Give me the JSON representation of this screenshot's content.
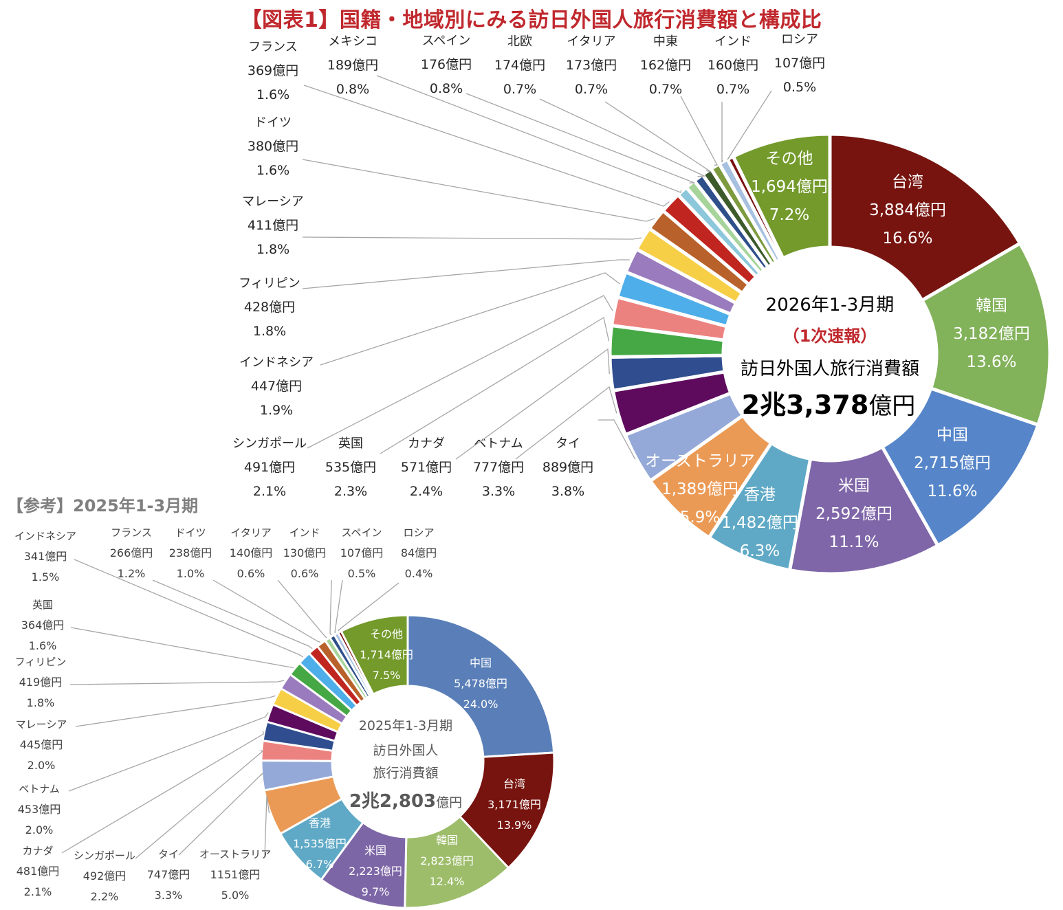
{
  "title": "【図表1】国籍・地域別にみる訪日外国人旅行消費額と構成比",
  "reference_title": "【参考】2025年1-3月期",
  "chart_data": [
    {
      "type": "donut",
      "period": "2026年1-3月期",
      "center": {
        "line1": "2026年1-3月期",
        "line2": "（1次速報）",
        "line3": "訪日外国人旅行消費額",
        "total_main": "2兆3,378",
        "total_unit": "億円"
      },
      "series": [
        {
          "name": "台湾",
          "value": 3884,
          "value_label": "3,884億円",
          "pct_label": "16.6%",
          "color": "#77140f"
        },
        {
          "name": "韓国",
          "value": 3182,
          "value_label": "3,182億円",
          "pct_label": "13.6%",
          "color": "#82b25a"
        },
        {
          "name": "中国",
          "value": 2715,
          "value_label": "2,715億円",
          "pct_label": "11.6%",
          "color": "#5686c9"
        },
        {
          "name": "米国",
          "value": 2592,
          "value_label": "2,592億円",
          "pct_label": "11.1%",
          "color": "#7f66a8"
        },
        {
          "name": "香港",
          "value": 1482,
          "value_label": "1,482億円",
          "pct_label": "6.3%",
          "color": "#5fa9c6"
        },
        {
          "name": "オーストラリア",
          "value": 1389,
          "value_label": "1,389億円",
          "pct_label": "5.9%",
          "color": "#eb9a55"
        },
        {
          "name": "タイ",
          "value": 889,
          "value_label": "889億円",
          "pct_label": "3.8%",
          "color": "#95a9d8"
        },
        {
          "name": "ベトナム",
          "value": 777,
          "value_label": "777億円",
          "pct_label": "3.3%",
          "color": "#5e0b5e"
        },
        {
          "name": "カナダ",
          "value": 571,
          "value_label": "571億円",
          "pct_label": "2.4%",
          "color": "#2f4d8f"
        },
        {
          "name": "英国",
          "value": 535,
          "value_label": "535億円",
          "pct_label": "2.3%",
          "color": "#46a845"
        },
        {
          "name": "シンガポール",
          "value": 491,
          "value_label": "491億円",
          "pct_label": "2.1%",
          "color": "#ec8280"
        },
        {
          "name": "インドネシア",
          "value": 447,
          "value_label": "447億円",
          "pct_label": "1.9%",
          "color": "#4eaee9"
        },
        {
          "name": "フィリピン",
          "value": 428,
          "value_label": "428億円",
          "pct_label": "1.8%",
          "color": "#9a7bbd"
        },
        {
          "name": "マレーシア",
          "value": 411,
          "value_label": "411億円",
          "pct_label": "1.8%",
          "color": "#f7cf47"
        },
        {
          "name": "ドイツ",
          "value": 380,
          "value_label": "380億円",
          "pct_label": "1.6%",
          "color": "#b9612a"
        },
        {
          "name": "フランス",
          "value": 369,
          "value_label": "369億円",
          "pct_label": "1.6%",
          "color": "#c0251f"
        },
        {
          "name": "メキシコ",
          "value": 189,
          "value_label": "189億円",
          "pct_label": "0.8%",
          "color": "#8cc7dc"
        },
        {
          "name": "スペイン",
          "value": 176,
          "value_label": "176億円",
          "pct_label": "0.8%",
          "color": "#a7d49a"
        },
        {
          "name": "北欧",
          "value": 174,
          "value_label": "174億円",
          "pct_label": "0.7%",
          "color": "#2f4f8a"
        },
        {
          "name": "イタリア",
          "value": 173,
          "value_label": "173億円",
          "pct_label": "0.7%",
          "color": "#3c5a2a"
        },
        {
          "name": "中東",
          "value": 162,
          "value_label": "162億円",
          "pct_label": "0.7%",
          "color": "#7d9b3e"
        },
        {
          "name": "インド",
          "value": 160,
          "value_label": "160億円",
          "pct_label": "0.7%",
          "color": "#a7c0e0"
        },
        {
          "name": "ロシア",
          "value": 107,
          "value_label": "107億円",
          "pct_label": "0.5%",
          "color": "#7a1010"
        },
        {
          "name": "その他",
          "value": 1694,
          "value_label": "1,694億円",
          "pct_label": "7.2%",
          "color": "#739a2b"
        }
      ]
    },
    {
      "type": "donut",
      "period": "2025年1-3月期",
      "center": {
        "line1": "2025年1-3月期",
        "line2": "訪日外国人",
        "line3": "旅行消費額",
        "total_main": "2兆2,803",
        "total_unit": "億円"
      },
      "series": [
        {
          "name": "中国",
          "value": 5478,
          "value_label": "5,478億円",
          "pct_label": "24.0%",
          "color": "#5a7fb8"
        },
        {
          "name": "台湾",
          "value": 3171,
          "value_label": "3,171億円",
          "pct_label": "13.9%",
          "color": "#77140f"
        },
        {
          "name": "韓国",
          "value": 2823,
          "value_label": "2,823億円",
          "pct_label": "12.4%",
          "color": "#9dbd6a"
        },
        {
          "name": "米国",
          "value": 2223,
          "value_label": "2,223億円",
          "pct_label": "9.7%",
          "color": "#7d66a6"
        },
        {
          "name": "香港",
          "value": 1535,
          "value_label": "1,535億円",
          "pct_label": "6.7%",
          "color": "#5fa9c6"
        },
        {
          "name": "オーストラリア",
          "value": 1151,
          "value_label": "1151億円",
          "pct_label": "5.0%",
          "color": "#eb9a55"
        },
        {
          "name": "タイ",
          "value": 747,
          "value_label": "747億円",
          "pct_label": "3.3%",
          "color": "#95a9d8"
        },
        {
          "name": "シンガポール",
          "value": 492,
          "value_label": "492億円",
          "pct_label": "2.2%",
          "color": "#ec8280"
        },
        {
          "name": "カナダ",
          "value": 481,
          "value_label": "481億円",
          "pct_label": "2.1%",
          "color": "#2f4d8f"
        },
        {
          "name": "ベトナム",
          "value": 453,
          "value_label": "453億円",
          "pct_label": "2.0%",
          "color": "#5e0b5e"
        },
        {
          "name": "マレーシア",
          "value": 445,
          "value_label": "445億円",
          "pct_label": "2.0%",
          "color": "#f7cf47"
        },
        {
          "name": "フィリピン",
          "value": 419,
          "value_label": "419億円",
          "pct_label": "1.8%",
          "color": "#9a7bbd"
        },
        {
          "name": "英国",
          "value": 364,
          "value_label": "364億円",
          "pct_label": "1.6%",
          "color": "#46a845"
        },
        {
          "name": "インドネシア",
          "value": 341,
          "value_label": "341億円",
          "pct_label": "1.5%",
          "color": "#4eaee9"
        },
        {
          "name": "フランス",
          "value": 266,
          "value_label": "266億円",
          "pct_label": "1.2%",
          "color": "#c0251f"
        },
        {
          "name": "ドイツ",
          "value": 238,
          "value_label": "238億円",
          "pct_label": "1.0%",
          "color": "#b9612a"
        },
        {
          "name": "イタリア",
          "value": 140,
          "value_label": "140億円",
          "pct_label": "0.6%",
          "color": "#a7d49a"
        },
        {
          "name": "インド",
          "value": 130,
          "value_label": "130億円",
          "pct_label": "0.6%",
          "color": "#2f4f8a"
        },
        {
          "name": "スペイン",
          "value": 107,
          "value_label": "107億円",
          "pct_label": "0.5%",
          "color": "#a7c0e0"
        },
        {
          "name": "ロシア",
          "value": 84,
          "value_label": "84億円",
          "pct_label": "0.4%",
          "color": "#7a1010"
        },
        {
          "name": "その他",
          "value": 1714,
          "value_label": "1,714億円",
          "pct_label": "7.5%",
          "color": "#739a2b"
        }
      ]
    }
  ]
}
